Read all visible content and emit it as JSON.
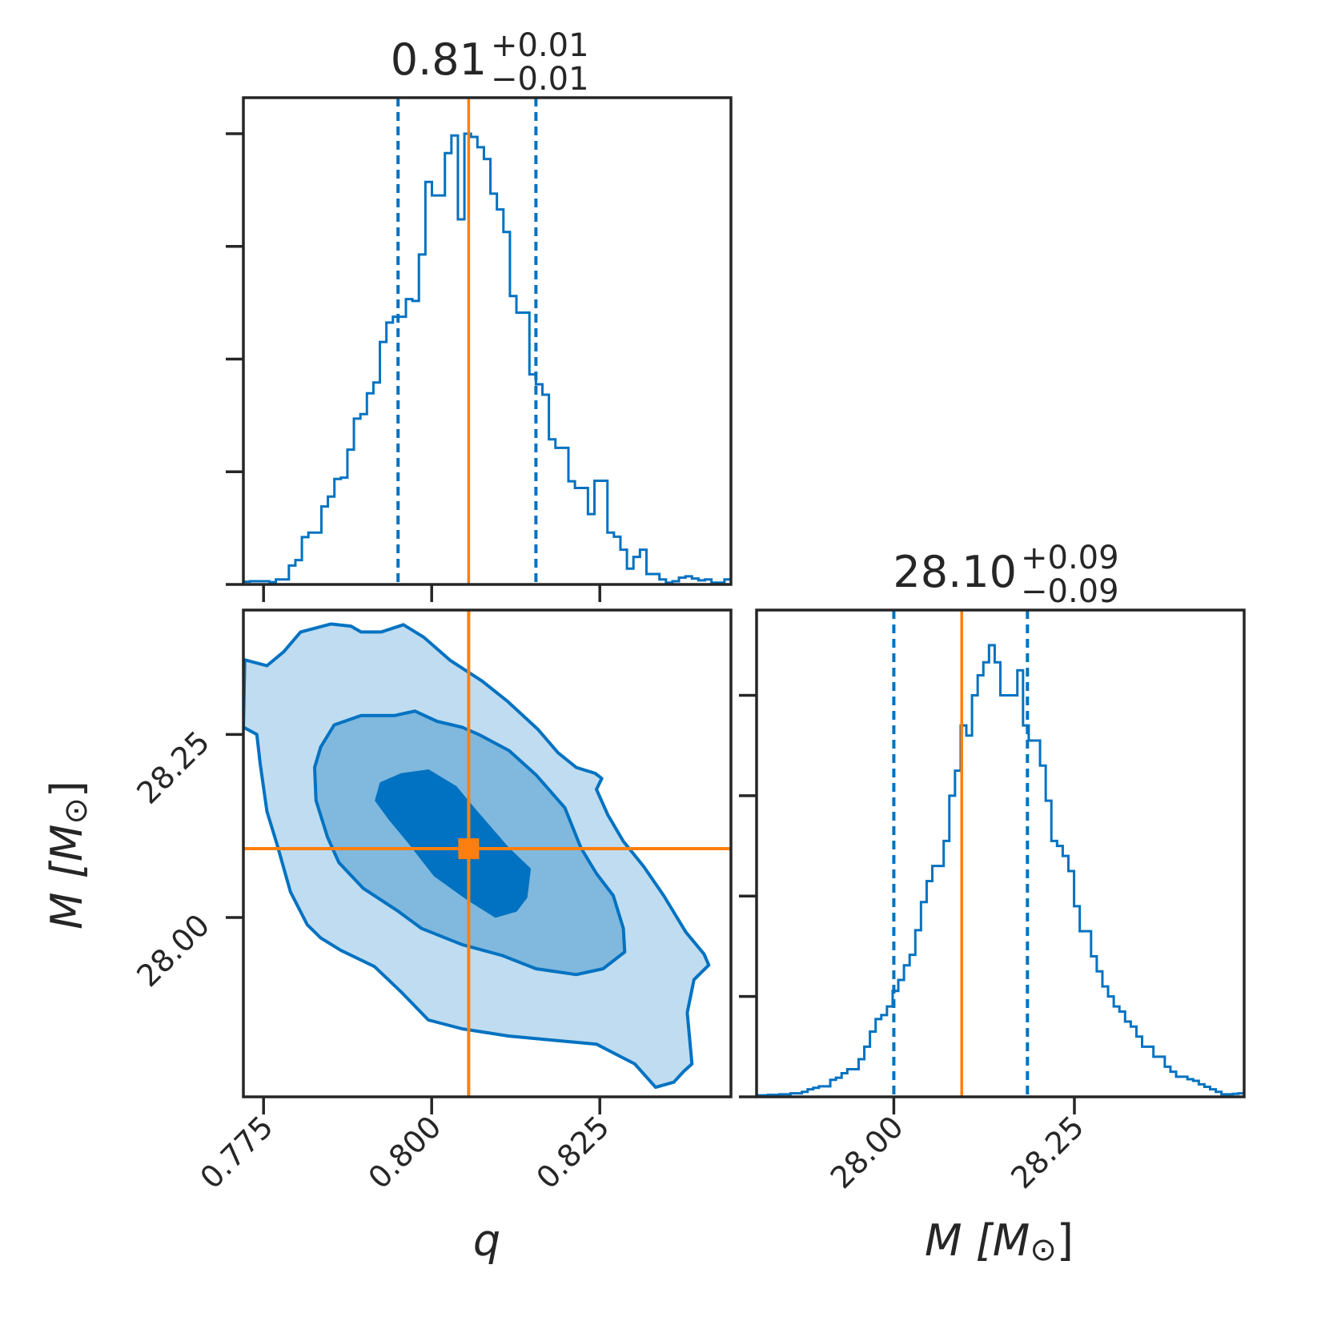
{
  "figure": {
    "axis_color": "#262626",
    "series_color": "#0072c1",
    "truth_color": "#ff7f0e",
    "contour_fills": [
      "#c0dcf0",
      "#80b8de",
      "#0072c1"
    ]
  },
  "chart_data": [
    {
      "type": "histogram",
      "panel": "q marginal",
      "parameter": "q",
      "title": {
        "base": "0.81",
        "sup": "+0.01",
        "sub": "−0.01"
      },
      "xlim": [
        0.772,
        0.8445
      ],
      "bins_edges": [
        0.772,
        0.8445
      ],
      "counts": [
        0.006,
        0.007,
        0.007,
        0.007,
        0.005,
        0.011,
        0.011,
        0.042,
        0.054,
        0.105,
        0.115,
        0.115,
        0.173,
        0.195,
        0.234,
        0.237,
        0.299,
        0.368,
        0.378,
        0.424,
        0.448,
        0.538,
        0.581,
        0.594,
        0.594,
        0.633,
        0.629,
        0.732,
        0.893,
        0.863,
        0.863,
        0.957,
        0.996,
        0.81,
        1.0,
        0.993,
        0.97,
        0.944,
        0.867,
        0.832,
        0.782,
        0.64,
        0.603,
        0.603,
        0.466,
        0.444,
        0.421,
        0.322,
        0.303,
        0.303,
        0.229,
        0.214,
        0.214,
        0.156,
        0.23,
        0.23,
        0.115,
        0.106,
        0.077,
        0.035,
        0.061,
        0.077,
        0.023,
        0.023,
        0.011,
        0.004,
        0.007,
        0.015,
        0.018,
        0.013,
        0.009,
        0.011,
        0.004,
        0.004,
        0.011
      ],
      "ylim": [
        0,
        1.08
      ],
      "y_ticks": [
        0.25,
        0.5,
        0.75,
        1.0
      ],
      "quantiles": [
        0.795,
        0.8155
      ],
      "truth": 0.8055
    },
    {
      "type": "histogram",
      "panel": "M marginal",
      "parameter": "M",
      "title": {
        "base": "28.10",
        "sup": "+0.09",
        "sub": "−0.09"
      },
      "xlim": [
        27.81,
        28.485
      ],
      "counts": [
        0.003,
        0.003,
        0.004,
        0.004,
        0.005,
        0.005,
        0.007,
        0.007,
        0.01,
        0.015,
        0.018,
        0.021,
        0.021,
        0.034,
        0.038,
        0.047,
        0.055,
        0.055,
        0.075,
        0.1,
        0.13,
        0.155,
        0.163,
        0.18,
        0.211,
        0.233,
        0.262,
        0.283,
        0.332,
        0.388,
        0.43,
        0.46,
        0.46,
        0.51,
        0.6,
        0.65,
        0.74,
        0.72,
        0.8,
        0.84,
        0.866,
        0.9,
        0.866,
        0.8,
        0.8,
        0.8,
        0.85,
        0.74,
        0.71,
        0.71,
        0.66,
        0.59,
        0.51,
        0.5,
        0.48,
        0.45,
        0.38,
        0.33,
        0.33,
        0.28,
        0.25,
        0.22,
        0.2,
        0.18,
        0.17,
        0.15,
        0.14,
        0.12,
        0.1,
        0.1,
        0.08,
        0.08,
        0.06,
        0.05,
        0.04,
        0.04,
        0.035,
        0.032,
        0.025,
        0.02,
        0.015,
        0.01,
        0.005,
        0.005,
        0.006,
        0.007
      ],
      "ylim": [
        0,
        0.97
      ],
      "y_ticks": [
        0.2,
        0.4,
        0.6,
        0.8
      ],
      "quantiles": [
        28.0,
        28.185
      ],
      "truth": 28.094
    },
    {
      "type": "contour",
      "panel": "q vs M joint",
      "x_parameter": "q",
      "y_parameter": "M",
      "xlabel": "q",
      "ylabel": "M [M⊙]",
      "xlim": [
        0.772,
        0.8445
      ],
      "ylim": [
        27.755,
        28.42
      ],
      "x_ticks": [
        0.775,
        0.8,
        0.825
      ],
      "x_tick_labels": [
        "0.775",
        "0.800",
        "0.825"
      ],
      "y_ticks": [
        28.0,
        28.25
      ],
      "y_tick_labels": [
        "28.00",
        "28.25"
      ],
      "levels": [
        "outer",
        "middle",
        "inner"
      ],
      "contours": {
        "outer": [
          [
            0.7722,
            28.352
          ],
          [
            0.7755,
            28.344
          ],
          [
            0.778,
            28.363
          ],
          [
            0.7805,
            28.39
          ],
          [
            0.785,
            28.401
          ],
          [
            0.788,
            28.398
          ],
          [
            0.7895,
            28.39
          ],
          [
            0.7925,
            28.39
          ],
          [
            0.7958,
            28.4
          ],
          [
            0.7988,
            28.383
          ],
          [
            0.8028,
            28.351
          ],
          [
            0.8075,
            28.323
          ],
          [
            0.8112,
            28.296
          ],
          [
            0.8158,
            28.257
          ],
          [
            0.8188,
            28.225
          ],
          [
            0.8215,
            28.205
          ],
          [
            0.8243,
            28.197
          ],
          [
            0.8253,
            28.19
          ],
          [
            0.8245,
            28.175
          ],
          [
            0.8262,
            28.14
          ],
          [
            0.8285,
            28.104
          ],
          [
            0.8315,
            28.07
          ],
          [
            0.8345,
            28.03
          ],
          [
            0.8378,
            27.98
          ],
          [
            0.8405,
            27.95
          ],
          [
            0.8412,
            27.935
          ],
          [
            0.839,
            27.915
          ],
          [
            0.838,
            27.87
          ],
          [
            0.8387,
            27.8
          ],
          [
            0.8375,
            27.79
          ],
          [
            0.836,
            27.775
          ],
          [
            0.8333,
            27.768
          ],
          [
            0.8302,
            27.8
          ],
          [
            0.8245,
            27.827
          ],
          [
            0.8185,
            27.832
          ],
          [
            0.8115,
            27.838
          ],
          [
            0.8045,
            27.848
          ],
          [
            0.7995,
            27.86
          ],
          [
            0.7955,
            27.898
          ],
          [
            0.7915,
            27.933
          ],
          [
            0.7865,
            27.955
          ],
          [
            0.7835,
            27.972
          ],
          [
            0.7815,
            27.99
          ],
          [
            0.779,
            28.035
          ],
          [
            0.777,
            28.1
          ],
          [
            0.7755,
            28.145
          ],
          [
            0.7745,
            28.21
          ],
          [
            0.774,
            28.25
          ],
          [
            0.772,
            28.26
          ]
        ],
        "middle": [
          [
            0.7835,
            28.233
          ],
          [
            0.7855,
            28.263
          ],
          [
            0.7895,
            28.276
          ],
          [
            0.7945,
            28.276
          ],
          [
            0.7975,
            28.282
          ],
          [
            0.8008,
            28.268
          ],
          [
            0.8045,
            28.26
          ],
          [
            0.807,
            28.25
          ],
          [
            0.8115,
            28.228
          ],
          [
            0.8155,
            28.195
          ],
          [
            0.8198,
            28.15
          ],
          [
            0.8222,
            28.095
          ],
          [
            0.8245,
            28.06
          ],
          [
            0.827,
            28.03
          ],
          [
            0.8285,
            27.985
          ],
          [
            0.8287,
            27.953
          ],
          [
            0.8255,
            27.93
          ],
          [
            0.8215,
            27.922
          ],
          [
            0.8155,
            27.93
          ],
          [
            0.8105,
            27.948
          ],
          [
            0.8045,
            27.963
          ],
          [
            0.7985,
            27.985
          ],
          [
            0.7948,
            28.01
          ],
          [
            0.7898,
            28.04
          ],
          [
            0.7862,
            28.075
          ],
          [
            0.7845,
            28.11
          ],
          [
            0.7828,
            28.16
          ],
          [
            0.7826,
            28.205
          ]
        ],
        "inner": [
          [
            0.7925,
            28.183
          ],
          [
            0.7955,
            28.195
          ],
          [
            0.7995,
            28.2
          ],
          [
            0.8035,
            28.178
          ],
          [
            0.8065,
            28.145
          ],
          [
            0.8112,
            28.095
          ],
          [
            0.8145,
            28.066
          ],
          [
            0.814,
            28.028
          ],
          [
            0.8125,
            28.01
          ],
          [
            0.8095,
            28.002
          ],
          [
            0.8055,
            28.025
          ],
          [
            0.8005,
            28.058
          ],
          [
            0.7965,
            28.105
          ],
          [
            0.7938,
            28.135
          ],
          [
            0.7918,
            28.16
          ]
        ]
      },
      "truth": {
        "x": 0.8055,
        "y": 28.094
      }
    }
  ]
}
